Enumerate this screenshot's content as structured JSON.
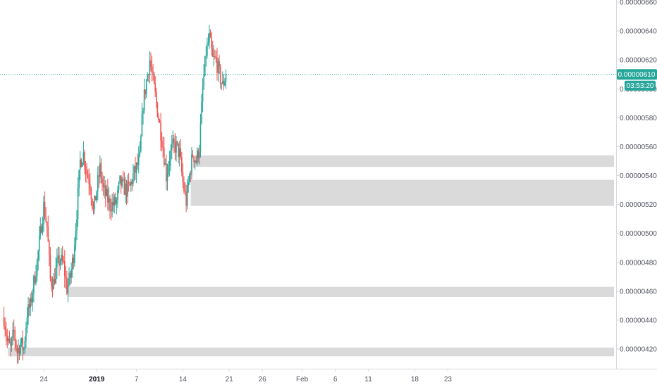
{
  "chart_data": {
    "type": "candlestick",
    "y_axis": {
      "min": 4.12e-06,
      "max": 6.62e-06,
      "ticks": [
        {
          "value": 6.6e-06,
          "label": "0.00000660"
        },
        {
          "value": 6.4e-06,
          "label": "0.00000640"
        },
        {
          "value": 6.2e-06,
          "label": "0.00000620"
        },
        {
          "value": 6e-06,
          "label": "0.00000600"
        },
        {
          "value": 5.8e-06,
          "label": "0.00000580"
        },
        {
          "value": 5.6e-06,
          "label": "0.00000560"
        },
        {
          "value": 5.4e-06,
          "label": "0.00000540"
        },
        {
          "value": 5.2e-06,
          "label": "0.00000520"
        },
        {
          "value": 5e-06,
          "label": "0.00000500"
        },
        {
          "value": 4.8e-06,
          "label": "0.00000480"
        },
        {
          "value": 4.6e-06,
          "label": "0.00000460"
        },
        {
          "value": 4.4e-06,
          "label": "0.00000440"
        },
        {
          "value": 4.2e-06,
          "label": "0.00000420"
        }
      ]
    },
    "x_axis": {
      "ticks": [
        {
          "day": 24,
          "label": "24",
          "bold": false
        },
        {
          "day": 32,
          "label": "2019",
          "bold": true
        },
        {
          "day": 38,
          "label": "7",
          "bold": false
        },
        {
          "day": 45,
          "label": "14",
          "bold": false
        },
        {
          "day": 52,
          "label": "21",
          "bold": false
        },
        {
          "day": 57,
          "label": "26",
          "bold": false
        },
        {
          "day": 63,
          "label": "Feb",
          "bold": false
        },
        {
          "day": 68,
          "label": "6",
          "bold": false
        },
        {
          "day": 73,
          "label": "11",
          "bold": false
        },
        {
          "day": 80,
          "label": "18",
          "bold": false
        },
        {
          "day": 85,
          "label": "23",
          "bold": false
        }
      ]
    },
    "current_price": {
      "value": 6.1e-06,
      "label": "0.00000610",
      "countdown": "03:53:20",
      "color": "#26a69a"
    },
    "zones": [
      {
        "from_day": 46.8,
        "y_low": 5.46e-06,
        "y_high": 5.54e-06
      },
      {
        "from_day": 46.2,
        "y_low": 5.19e-06,
        "y_high": 5.37e-06
      },
      {
        "from_day": 27.6,
        "y_low": 4.56e-06,
        "y_high": 4.63e-06
      },
      {
        "from_day": 18.6,
        "y_low": 4.15e-06,
        "y_high": 4.21e-06
      }
    ],
    "series_anchors": [
      [
        18.0,
        4.42e-06
      ],
      [
        18.5,
        4.25e-06
      ],
      [
        19.0,
        4.2e-06
      ],
      [
        19.5,
        4.32e-06
      ],
      [
        20.0,
        4.18e-06
      ],
      [
        20.5,
        4.24e-06
      ],
      [
        21.0,
        4.2e-06
      ],
      [
        21.5,
        4.45e-06
      ],
      [
        22.0,
        4.5e-06
      ],
      [
        22.5,
        4.66e-06
      ],
      [
        23.0,
        4.8e-06
      ],
      [
        23.5,
        5e-06
      ],
      [
        24.0,
        5.19e-06
      ],
      [
        24.5,
        5.05e-06
      ],
      [
        25.0,
        4.68e-06
      ],
      [
        25.5,
        4.66e-06
      ],
      [
        26.0,
        4.78e-06
      ],
      [
        26.5,
        4.82e-06
      ],
      [
        27.0,
        4.78e-06
      ],
      [
        27.5,
        4.62e-06
      ],
      [
        28.0,
        4.7e-06
      ],
      [
        28.5,
        4.85e-06
      ],
      [
        29.0,
        5.15e-06
      ],
      [
        29.5,
        5.5e-06
      ],
      [
        30.0,
        5.55e-06
      ],
      [
        30.5,
        5.42e-06
      ],
      [
        31.0,
        5.35e-06
      ],
      [
        31.5,
        5.15e-06
      ],
      [
        32.0,
        5.3e-06
      ],
      [
        32.5,
        5.45e-06
      ],
      [
        33.0,
        5.3e-06
      ],
      [
        33.5,
        5.25e-06
      ],
      [
        34.0,
        5.2e-06
      ],
      [
        34.5,
        5.2e-06
      ],
      [
        35.0,
        5.22e-06
      ],
      [
        35.5,
        5.35e-06
      ],
      [
        36.0,
        5.32e-06
      ],
      [
        36.5,
        5.3e-06
      ],
      [
        37.0,
        5.32e-06
      ],
      [
        37.5,
        5.4e-06
      ],
      [
        38.0,
        5.45e-06
      ],
      [
        38.5,
        5.52e-06
      ],
      [
        39.0,
        5.9e-06
      ],
      [
        39.5,
        6.05e-06
      ],
      [
        40.0,
        6.2e-06
      ],
      [
        40.5,
        6.05e-06
      ],
      [
        41.0,
        5.9e-06
      ],
      [
        41.5,
        5.75e-06
      ],
      [
        42.0,
        5.6e-06
      ],
      [
        42.5,
        5.4e-06
      ],
      [
        43.0,
        5.53e-06
      ],
      [
        43.5,
        5.6e-06
      ],
      [
        44.0,
        5.6e-06
      ],
      [
        44.5,
        5.55e-06
      ],
      [
        45.0,
        5.35e-06
      ],
      [
        45.5,
        5.22e-06
      ],
      [
        46.0,
        5.4e-06
      ],
      [
        46.5,
        5.55e-06
      ],
      [
        47.0,
        5.5e-06
      ],
      [
        47.5,
        5.6e-06
      ],
      [
        48.0,
        6e-06
      ],
      [
        48.5,
        6.25e-06
      ],
      [
        49.0,
        6.35e-06
      ],
      [
        49.5,
        6.2e-06
      ],
      [
        50.0,
        6.2e-06
      ],
      [
        50.5,
        6.1e-06
      ],
      [
        51.0,
        6.02e-06
      ],
      [
        51.5,
        6.1e-06
      ]
    ]
  }
}
